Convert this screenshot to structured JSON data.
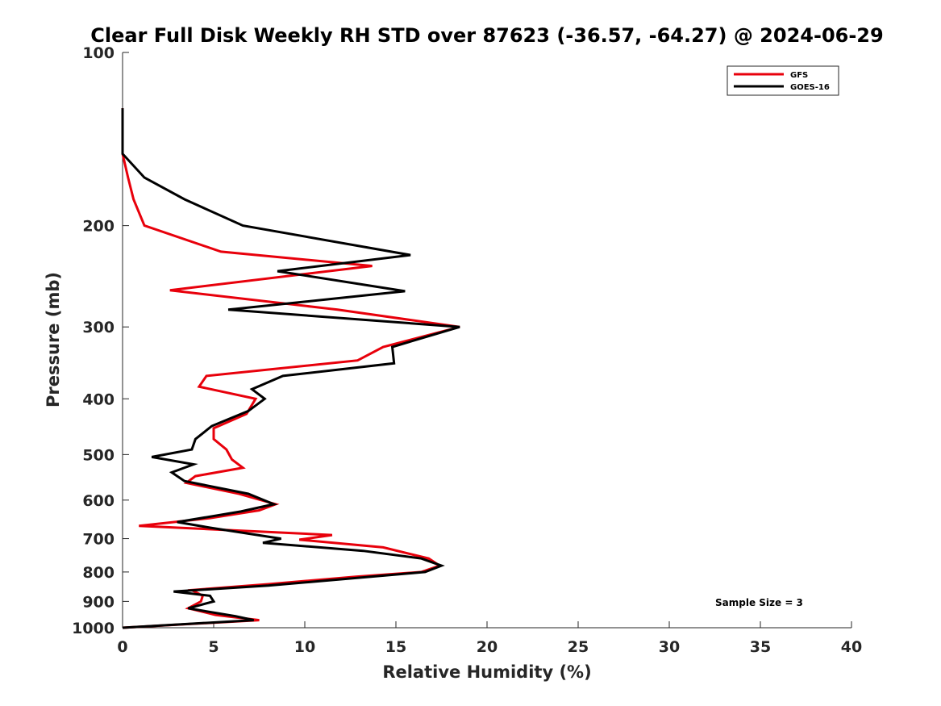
{
  "chart_data": {
    "type": "line",
    "title": "Clear Full Disk Weekly RH STD over 87623 (-36.57, -64.27) @ 2024-06-29",
    "xlabel": "Relative Humidity (%)",
    "ylabel": "Pressure (mb)",
    "xlim": [
      0,
      40
    ],
    "ylim": [
      100,
      1000
    ],
    "y_scale": "log",
    "y_reversed": true,
    "x_ticks": [
      "0",
      "5",
      "10",
      "15",
      "20",
      "25",
      "30",
      "35",
      "40"
    ],
    "y_ticks": [
      "100",
      "200",
      "300",
      "400",
      "500",
      "600",
      "700",
      "800",
      "900",
      "1000"
    ],
    "grid": false,
    "legend_position": "top-right",
    "annotation": "Sample Size = 3",
    "series": [
      {
        "name": "GFS",
        "color": "#e8000b",
        "points": [
          [
            0,
            125
          ],
          [
            0,
            150
          ],
          [
            0.3,
            165
          ],
          [
            0.6,
            180
          ],
          [
            1.2,
            200
          ],
          [
            5.4,
            222
          ],
          [
            13.7,
            235
          ],
          [
            2.6,
            259
          ],
          [
            11.8,
            280
          ],
          [
            18.5,
            300
          ],
          [
            14.3,
            325
          ],
          [
            12.9,
            343
          ],
          [
            4.6,
            365
          ],
          [
            4.2,
            381
          ],
          [
            7.3,
            400
          ],
          [
            6.8,
            425
          ],
          [
            5.0,
            450
          ],
          [
            5.0,
            470
          ],
          [
            5.7,
            490
          ],
          [
            6.0,
            510
          ],
          [
            6.6,
            527
          ],
          [
            4.0,
            545
          ],
          [
            3.5,
            560
          ],
          [
            6.4,
            585
          ],
          [
            8.4,
            610
          ],
          [
            7.5,
            625
          ],
          [
            4.8,
            645
          ],
          [
            0.9,
            665
          ],
          [
            11.5,
            690
          ],
          [
            9.7,
            703
          ],
          [
            14.3,
            725
          ],
          [
            16.8,
            758
          ],
          [
            17.4,
            780
          ],
          [
            16.4,
            800
          ],
          [
            12.8,
            815
          ],
          [
            8.0,
            840
          ],
          [
            3.8,
            860
          ],
          [
            4.4,
            880
          ],
          [
            4.3,
            900
          ],
          [
            3.6,
            925
          ],
          [
            5.1,
            950
          ],
          [
            7.5,
            970
          ],
          [
            0,
            1000
          ]
        ]
      },
      {
        "name": "GOES-16",
        "color": "#000000",
        "points": [
          [
            0,
            125
          ],
          [
            0,
            150
          ],
          [
            1.2,
            165
          ],
          [
            3.4,
            180
          ],
          [
            6.6,
            200
          ],
          [
            15.8,
            225
          ],
          [
            8.5,
            240
          ],
          [
            15.5,
            260
          ],
          [
            5.8,
            280
          ],
          [
            18.5,
            300
          ],
          [
            14.8,
            325
          ],
          [
            14.9,
            347
          ],
          [
            8.8,
            365
          ],
          [
            7.1,
            385
          ],
          [
            7.8,
            400
          ],
          [
            6.9,
            420
          ],
          [
            4.9,
            446
          ],
          [
            4.0,
            470
          ],
          [
            3.8,
            490
          ],
          [
            1.6,
            505
          ],
          [
            3.9,
            520
          ],
          [
            2.7,
            537
          ],
          [
            3.4,
            556
          ],
          [
            6.9,
            585
          ],
          [
            8.3,
            610
          ],
          [
            6.5,
            628
          ],
          [
            3.0,
            655
          ],
          [
            4.8,
            670
          ],
          [
            8.7,
            700
          ],
          [
            7.7,
            712
          ],
          [
            13.2,
            735
          ],
          [
            16.4,
            758
          ],
          [
            17.5,
            780
          ],
          [
            16.6,
            800
          ],
          [
            8.0,
            845
          ],
          [
            2.8,
            865
          ],
          [
            4.8,
            880
          ],
          [
            5.0,
            900
          ],
          [
            3.6,
            925
          ],
          [
            6.2,
            955
          ],
          [
            7.2,
            970
          ],
          [
            0,
            1000
          ]
        ]
      }
    ]
  }
}
